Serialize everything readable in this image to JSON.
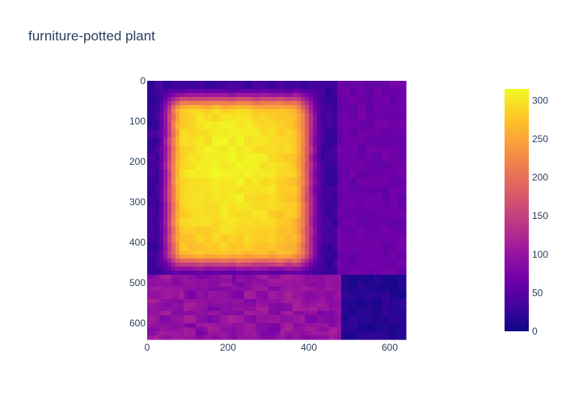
{
  "chart_data": {
    "type": "heatmap",
    "title": "furniture-potted plant",
    "xlabel": "",
    "ylabel": "",
    "x_range": [
      0,
      640
    ],
    "y_range": [
      0,
      640
    ],
    "y_reversed": true,
    "x_ticks": [
      0,
      200,
      400,
      600
    ],
    "y_ticks": [
      0,
      100,
      200,
      300,
      400,
      500,
      600
    ],
    "x_tick_labels": [
      "0",
      "200",
      "400",
      "600"
    ],
    "y_tick_labels": [
      "0",
      "100",
      "200",
      "300",
      "400",
      "500",
      "600"
    ],
    "colorscale": "plasma",
    "zmin": 0,
    "zmax": 315,
    "colorbar_ticks": [
      0,
      50,
      100,
      150,
      200,
      250,
      300
    ],
    "colorbar_tick_labels": [
      "0",
      "50",
      "100",
      "150",
      "200",
      "250",
      "300"
    ],
    "regions": {
      "background": 30,
      "hot_region": {
        "x_from": 20,
        "x_to": 440,
        "y_from": 10,
        "y_to": 490,
        "peak": 310,
        "center": [
          200,
          210
        ]
      },
      "lower_band": {
        "x_from": 0,
        "x_to": 470,
        "y_from": 480,
        "y_to": 640,
        "value": 95
      },
      "right_column": {
        "x_from": 470,
        "x_to": 640,
        "y_from": 0,
        "y_to": 480,
        "value": 65
      },
      "corner": {
        "x_from": 480,
        "x_to": 640,
        "y_from": 480,
        "y_to": 640,
        "value": 15
      }
    },
    "colors": {
      "text": "#2a3f5f",
      "low": "#0d0887",
      "high": "#f0f921"
    }
  }
}
